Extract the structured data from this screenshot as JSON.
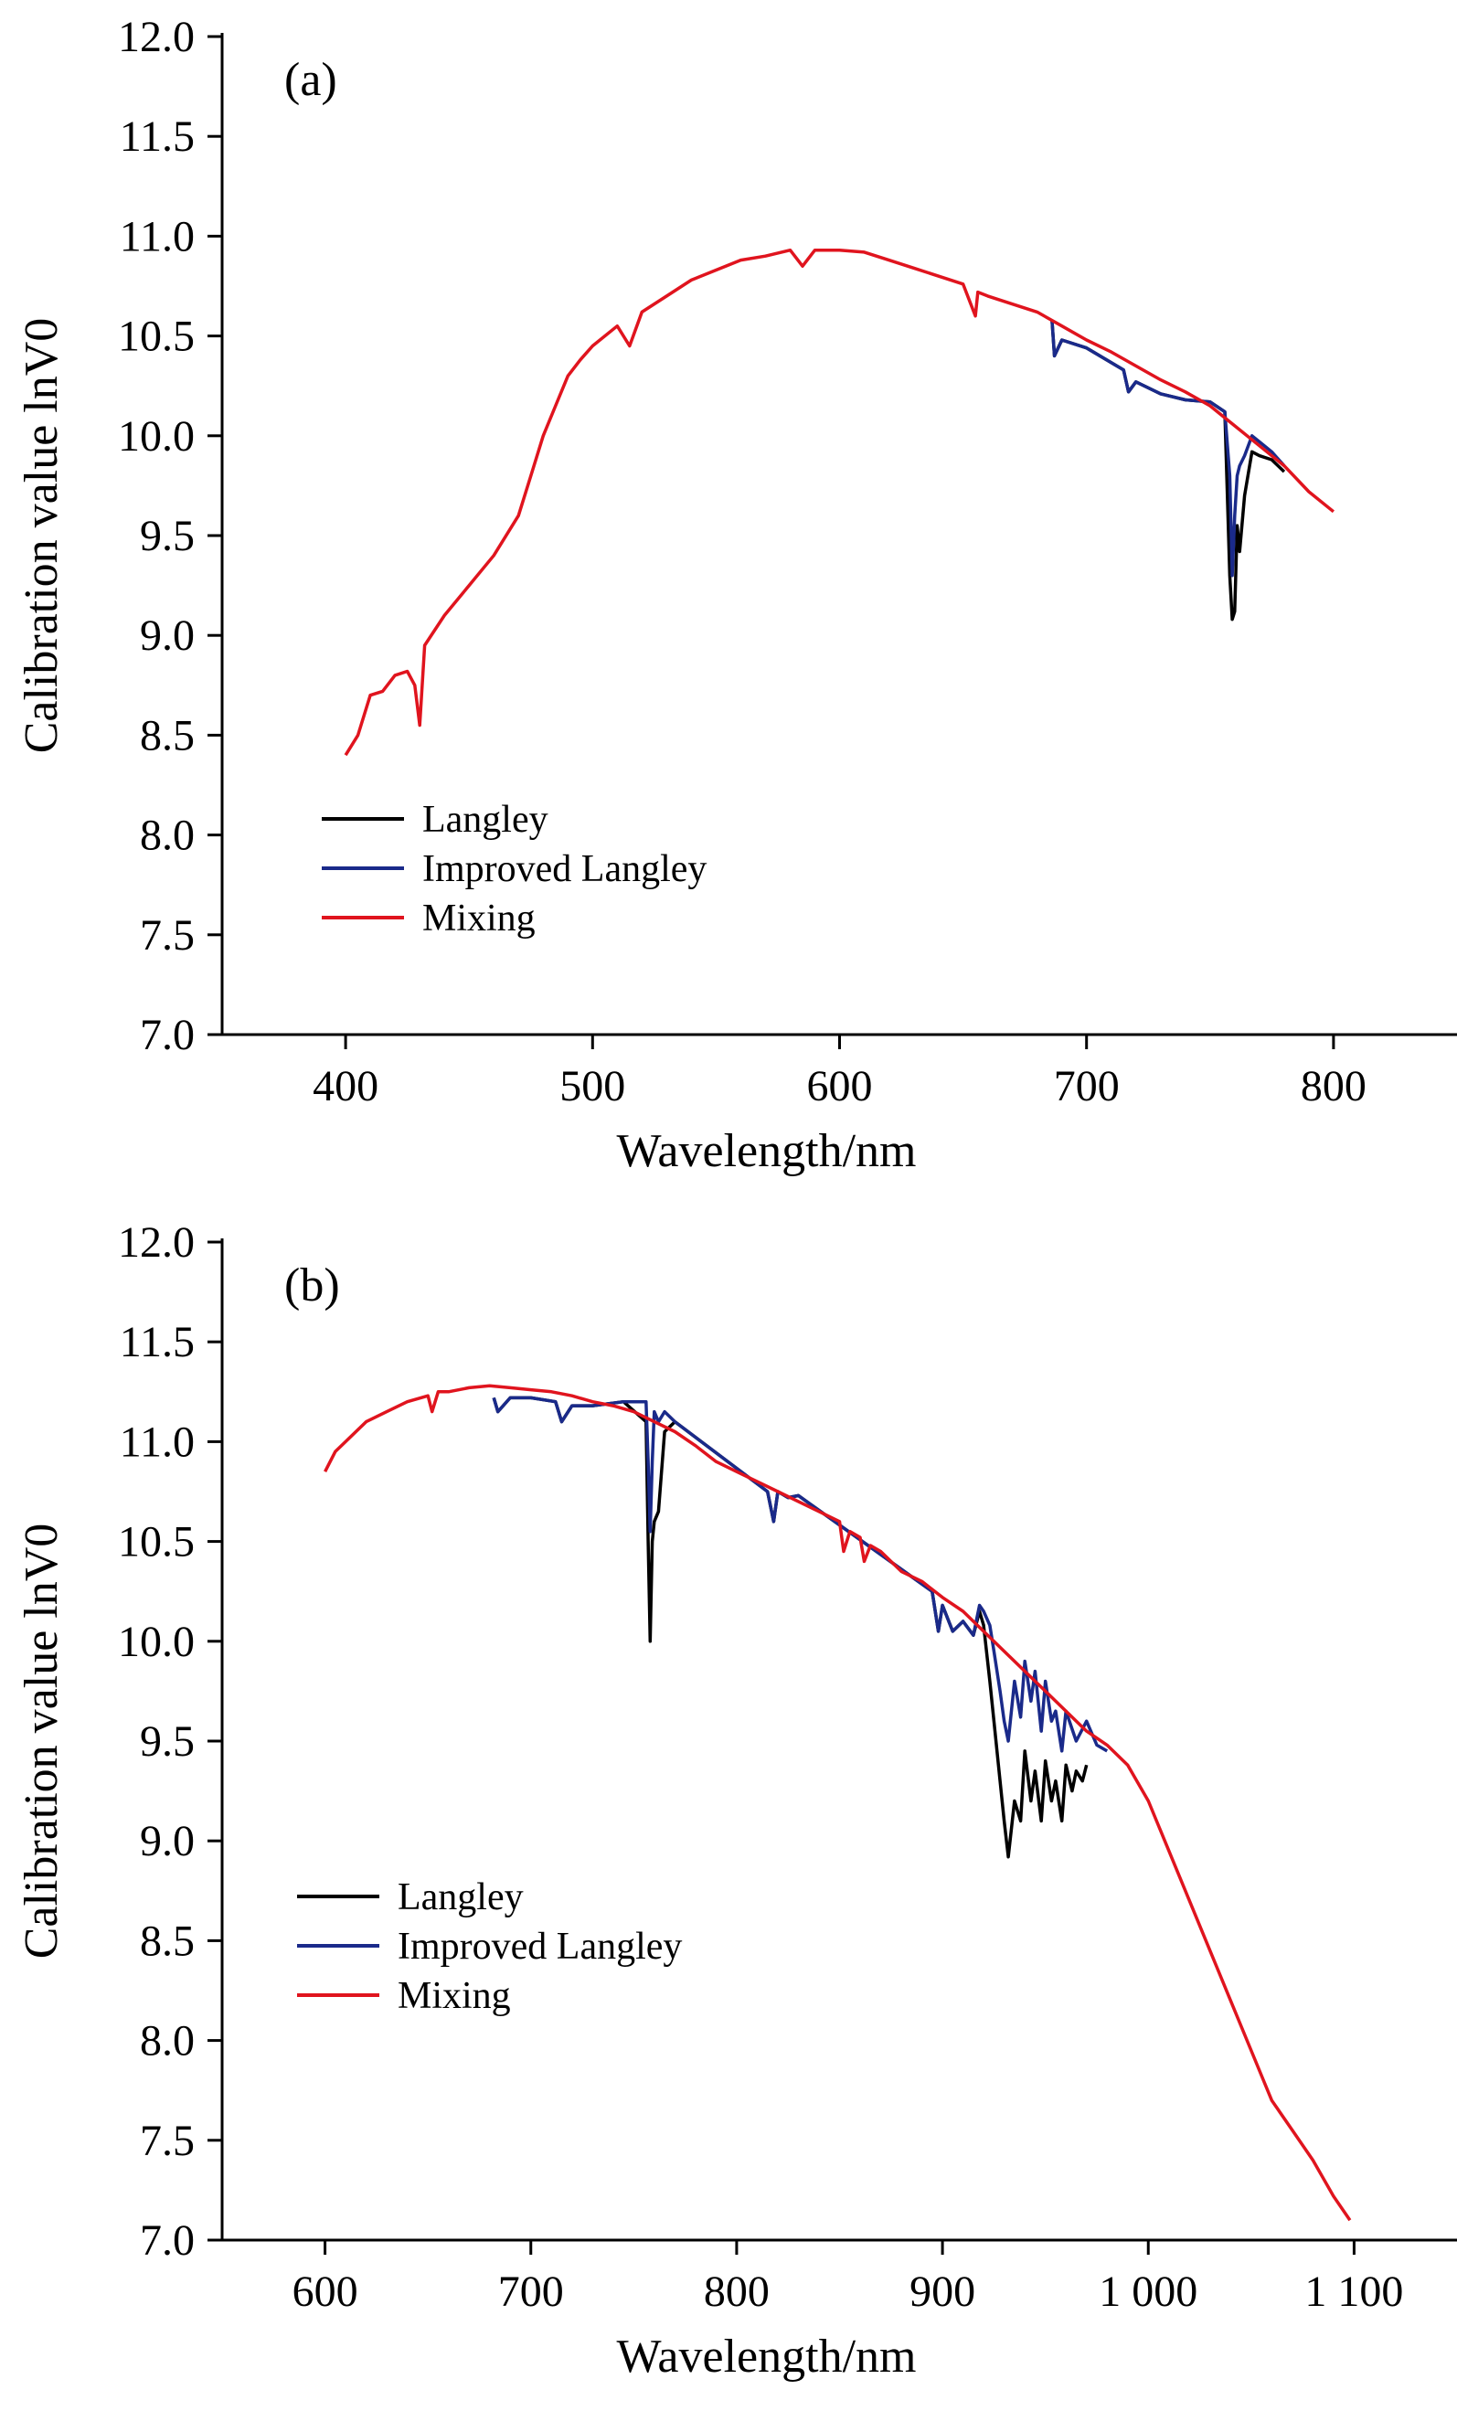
{
  "chart_data": [
    {
      "type": "line",
      "panel_label": "(a)",
      "xlabel": "Wavelength/nm",
      "ylabel": "Calibration value lnV0",
      "xlim": [
        350,
        850
      ],
      "ylim": [
        7.0,
        12.0
      ],
      "xticks": [
        400,
        500,
        600,
        700,
        800
      ],
      "xtick_labels": [
        "400",
        "500",
        "600",
        "700",
        "800"
      ],
      "yticks": [
        7.0,
        7.5,
        8.0,
        8.5,
        9.0,
        9.5,
        10.0,
        10.5,
        11.0,
        11.5,
        12.0
      ],
      "ytick_labels": [
        "7.0",
        "7.5",
        "8.0",
        "8.5",
        "9.0",
        "9.5",
        "10.0",
        "10.5",
        "11.0",
        "11.5",
        "12.0"
      ],
      "legend_position": "lower-left",
      "series": [
        {
          "name": "Langley",
          "color": "#000000",
          "x": [
            686,
            687,
            690,
            700,
            715,
            717,
            720,
            730,
            740,
            750,
            756,
            758,
            759,
            760,
            761,
            762,
            764,
            767,
            770,
            775,
            780
          ],
          "y": [
            10.58,
            10.4,
            10.48,
            10.44,
            10.33,
            10.22,
            10.27,
            10.21,
            10.18,
            10.17,
            10.12,
            9.3,
            9.08,
            9.12,
            9.55,
            9.42,
            9.7,
            9.92,
            9.9,
            9.88,
            9.82
          ]
        },
        {
          "name": "Improved Langley",
          "color": "#1a2a8a",
          "x": [
            686,
            687,
            690,
            700,
            715,
            717,
            720,
            730,
            740,
            750,
            756,
            758,
            759,
            760,
            761,
            762,
            764,
            767,
            770,
            775,
            780
          ],
          "y": [
            10.58,
            10.4,
            10.48,
            10.44,
            10.33,
            10.22,
            10.27,
            10.21,
            10.18,
            10.17,
            10.12,
            9.8,
            9.3,
            9.6,
            9.8,
            9.85,
            9.9,
            10.0,
            9.97,
            9.92,
            9.85
          ]
        },
        {
          "name": "Mixing",
          "color": "#e0141e",
          "x": [
            400,
            405,
            410,
            415,
            420,
            425,
            428,
            430,
            432,
            440,
            450,
            460,
            470,
            475,
            480,
            485,
            490,
            495,
            500,
            510,
            515,
            520,
            530,
            540,
            550,
            560,
            570,
            580,
            585,
            590,
            600,
            610,
            620,
            630,
            640,
            650,
            655,
            656,
            658,
            660,
            670,
            680,
            690,
            700,
            710,
            720,
            730,
            740,
            750,
            760,
            770,
            780,
            790,
            800
          ],
          "y": [
            8.4,
            8.5,
            8.7,
            8.72,
            8.8,
            8.82,
            8.75,
            8.55,
            8.95,
            9.1,
            9.25,
            9.4,
            9.6,
            9.8,
            10.0,
            10.15,
            10.3,
            10.38,
            10.45,
            10.55,
            10.45,
            10.62,
            10.7,
            10.78,
            10.83,
            10.88,
            10.9,
            10.93,
            10.85,
            10.93,
            10.93,
            10.92,
            10.88,
            10.84,
            10.8,
            10.76,
            10.6,
            10.72,
            10.71,
            10.7,
            10.66,
            10.62,
            10.55,
            10.48,
            10.42,
            10.35,
            10.28,
            10.22,
            10.15,
            10.05,
            9.95,
            9.85,
            9.72,
            9.62
          ]
        }
      ]
    },
    {
      "type": "line",
      "panel_label": "(b)",
      "xlabel": "Wavelength/nm",
      "ylabel": "Calibration value lnV0",
      "xlim": [
        550,
        1150
      ],
      "ylim": [
        7.0,
        12.0
      ],
      "xticks": [
        600,
        700,
        800,
        900,
        1000,
        1100
      ],
      "xtick_labels": [
        "600",
        "700",
        "800",
        "900",
        "1 000",
        "1 100"
      ],
      "yticks": [
        7.0,
        7.5,
        8.0,
        8.5,
        9.0,
        9.5,
        10.0,
        10.5,
        11.0,
        11.5,
        12.0
      ],
      "ytick_labels": [
        "7.0",
        "7.5",
        "8.0",
        "8.5",
        "9.0",
        "9.5",
        "10.0",
        "10.5",
        "11.0",
        "11.5",
        "12.0"
      ],
      "legend_position": "lower-left",
      "series": [
        {
          "name": "Langley",
          "color": "#000000",
          "x": [
            682,
            684,
            690,
            700,
            712,
            715,
            720,
            730,
            745,
            756,
            757,
            758,
            759,
            760,
            762,
            765,
            770,
            815,
            818,
            820,
            825,
            830,
            895,
            898,
            900,
            905,
            910,
            915,
            918,
            920,
            923,
            925,
            928,
            930,
            932,
            935,
            938,
            940,
            943,
            945,
            948,
            950,
            953,
            955,
            958,
            960,
            963,
            965,
            968,
            970
          ],
          "y": [
            11.22,
            11.15,
            11.22,
            11.22,
            11.2,
            11.1,
            11.18,
            11.18,
            11.2,
            11.1,
            10.5,
            10.0,
            10.5,
            10.6,
            10.65,
            11.05,
            11.1,
            10.75,
            10.6,
            10.75,
            10.72,
            10.73,
            10.25,
            10.05,
            10.18,
            10.05,
            10.1,
            10.03,
            10.15,
            10.08,
            9.8,
            9.6,
            9.3,
            9.1,
            8.92,
            9.2,
            9.1,
            9.45,
            9.2,
            9.35,
            9.1,
            9.4,
            9.2,
            9.3,
            9.1,
            9.38,
            9.25,
            9.35,
            9.3,
            9.38
          ]
        },
        {
          "name": "Improved Langley",
          "color": "#1a2a8a",
          "x": [
            682,
            684,
            690,
            700,
            712,
            715,
            720,
            730,
            745,
            756,
            757,
            758,
            759,
            760,
            762,
            765,
            770,
            815,
            818,
            820,
            825,
            830,
            895,
            898,
            900,
            905,
            910,
            915,
            918,
            920,
            923,
            925,
            928,
            930,
            932,
            935,
            938,
            940,
            943,
            945,
            948,
            950,
            953,
            955,
            958,
            960,
            965,
            970,
            975,
            980
          ],
          "y": [
            11.22,
            11.15,
            11.22,
            11.22,
            11.2,
            11.1,
            11.18,
            11.18,
            11.2,
            11.2,
            10.9,
            10.55,
            10.9,
            11.15,
            11.1,
            11.15,
            11.1,
            10.75,
            10.6,
            10.75,
            10.72,
            10.73,
            10.25,
            10.05,
            10.18,
            10.05,
            10.1,
            10.03,
            10.18,
            10.15,
            10.08,
            9.95,
            9.75,
            9.6,
            9.5,
            9.8,
            9.62,
            9.9,
            9.7,
            9.85,
            9.55,
            9.8,
            9.6,
            9.65,
            9.45,
            9.65,
            9.5,
            9.6,
            9.48,
            9.45
          ]
        },
        {
          "name": "Mixing",
          "color": "#e0141e",
          "x": [
            600,
            605,
            610,
            620,
            630,
            640,
            650,
            652,
            655,
            660,
            670,
            680,
            690,
            700,
            710,
            720,
            730,
            740,
            750,
            760,
            770,
            780,
            790,
            800,
            810,
            820,
            830,
            840,
            850,
            852,
            855,
            860,
            862,
            865,
            870,
            880,
            890,
            900,
            910,
            920,
            930,
            940,
            950,
            960,
            970,
            980,
            990,
            1000,
            1010,
            1020,
            1030,
            1040,
            1050,
            1060,
            1070,
            1080,
            1090,
            1098
          ],
          "y": [
            10.85,
            10.95,
            11.0,
            11.1,
            11.15,
            11.2,
            11.23,
            11.15,
            11.25,
            11.25,
            11.27,
            11.28,
            11.27,
            11.26,
            11.25,
            11.23,
            11.2,
            11.18,
            11.15,
            11.1,
            11.05,
            10.98,
            10.9,
            10.85,
            10.8,
            10.75,
            10.7,
            10.65,
            10.6,
            10.45,
            10.55,
            10.52,
            10.4,
            10.48,
            10.45,
            10.35,
            10.3,
            10.22,
            10.15,
            10.05,
            9.95,
            9.85,
            9.75,
            9.65,
            9.55,
            9.48,
            9.38,
            9.2,
            8.95,
            8.7,
            8.45,
            8.2,
            7.95,
            7.7,
            7.55,
            7.4,
            7.22,
            7.1
          ]
        }
      ]
    }
  ]
}
